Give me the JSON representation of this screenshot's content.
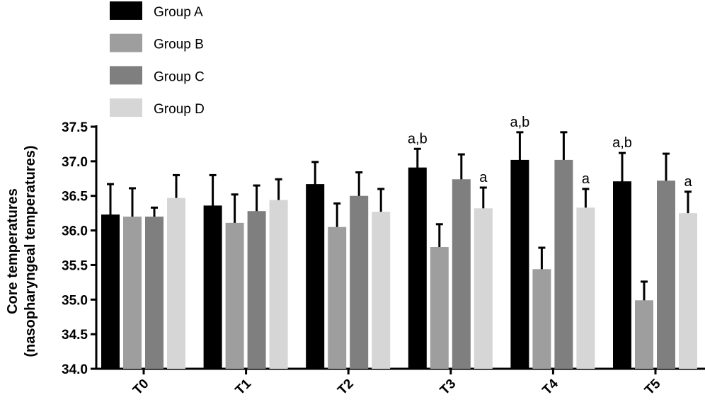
{
  "chart_data": {
    "type": "bar",
    "title": "",
    "xlabel": "",
    "ylabel": [
      "Core temperatures",
      "(nasopharyngeal temperatures)"
    ],
    "ylim": [
      34.0,
      37.5
    ],
    "yticks": [
      "34.0",
      "34.5",
      "35.0",
      "35.5",
      "36.0",
      "36.5",
      "37.0",
      "37.5"
    ],
    "categories": [
      "T0",
      "T1",
      "T2",
      "T3",
      "T4",
      "T5"
    ],
    "legend_position": "top-left",
    "grid": false,
    "series": [
      {
        "name": "Group A",
        "color": "#000000",
        "values": [
          36.23,
          36.36,
          36.67,
          36.91,
          37.02,
          36.71
        ],
        "error_upper": [
          36.67,
          36.8,
          36.99,
          37.18,
          37.42,
          37.12
        ]
      },
      {
        "name": "Group B",
        "color": "#9e9e9e",
        "values": [
          36.2,
          36.11,
          36.05,
          35.76,
          35.44,
          34.99
        ],
        "error_upper": [
          36.61,
          36.52,
          36.39,
          36.09,
          35.75,
          35.26
        ]
      },
      {
        "name": "Group C",
        "color": "#7f7f7f",
        "values": [
          36.2,
          36.28,
          36.5,
          36.74,
          37.02,
          36.72
        ],
        "error_upper": [
          36.33,
          36.65,
          36.84,
          37.1,
          37.42,
          37.11
        ]
      },
      {
        "name": "Group D",
        "color": "#d6d6d6",
        "values": [
          36.47,
          36.44,
          36.27,
          36.32,
          36.33,
          36.25
        ],
        "error_upper": [
          36.8,
          36.74,
          36.6,
          36.62,
          36.6,
          36.56
        ]
      }
    ],
    "annotations": [
      {
        "category": "T3",
        "series": "Group A",
        "text": "a,b"
      },
      {
        "category": "T3",
        "series": "Group D",
        "text": "a"
      },
      {
        "category": "T4",
        "series": "Group A",
        "text": "a,b"
      },
      {
        "category": "T4",
        "series": "Group D",
        "text": "a"
      },
      {
        "category": "T5",
        "series": "Group A",
        "text": "a,b"
      },
      {
        "category": "T5",
        "series": "Group D",
        "text": "a"
      }
    ]
  }
}
